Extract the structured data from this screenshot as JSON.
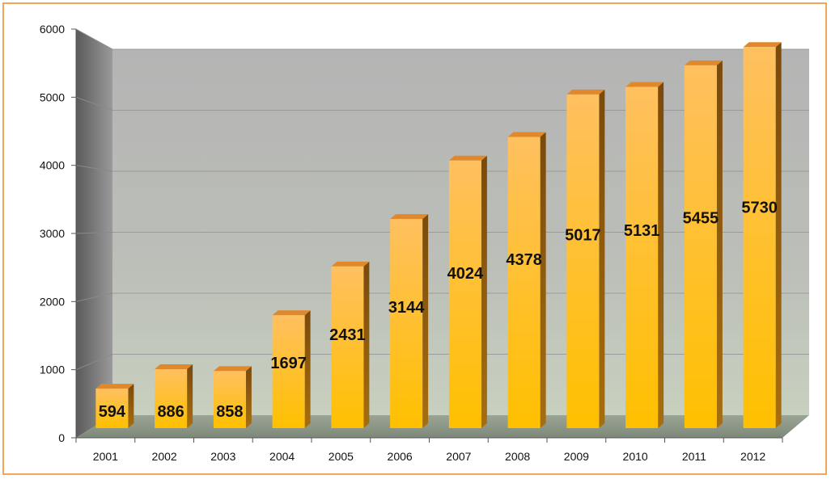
{
  "chart_data": {
    "type": "bar",
    "categories": [
      "2001",
      "2002",
      "2003",
      "2004",
      "2005",
      "2006",
      "2007",
      "2008",
      "2009",
      "2010",
      "2011",
      "2012"
    ],
    "values": [
      594,
      886,
      858,
      1697,
      2431,
      3144,
      4024,
      4378,
      5017,
      5131,
      5455,
      5730
    ],
    "ylim": [
      0,
      6000
    ],
    "yticks": [
      0,
      1000,
      2000,
      3000,
      4000,
      5000,
      6000
    ],
    "grid": true,
    "legend": "none",
    "style": "3d-column",
    "colors": {
      "bar_front_top": "#ffc86a",
      "bar_front_bottom": "#ffbf1a",
      "bar_side": "#8a5a12",
      "bar_top": "#e0882a",
      "frame": "#f2a65a"
    }
  }
}
